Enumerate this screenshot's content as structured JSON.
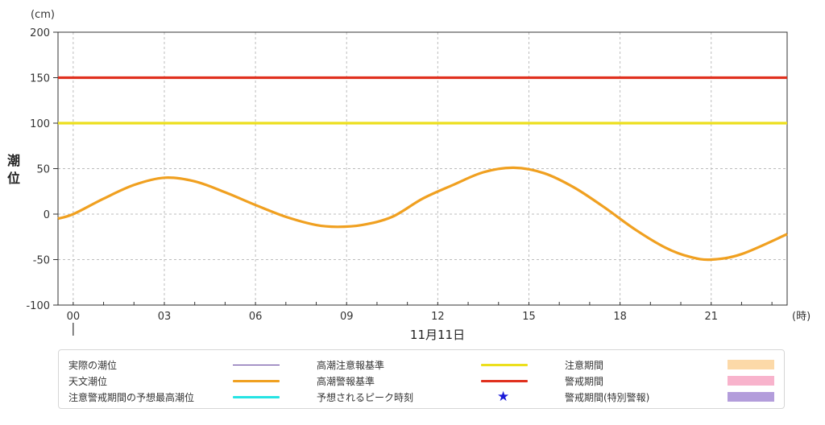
{
  "chart_data": {
    "type": "line",
    "y_unit": "(cm)",
    "x_unit": "(時)",
    "ylabel": "潮位",
    "date_label": "11月11日",
    "ylim": [
      -100,
      200
    ],
    "yticks": [
      -100,
      -50,
      0,
      50,
      100,
      150,
      200
    ],
    "x_range_hours": [
      -0.5,
      23.5
    ],
    "xticks": [
      {
        "hour": 0,
        "label": "00"
      },
      {
        "hour": 3,
        "label": "03"
      },
      {
        "hour": 6,
        "label": "06"
      },
      {
        "hour": 9,
        "label": "09"
      },
      {
        "hour": 12,
        "label": "12"
      },
      {
        "hour": 15,
        "label": "15"
      },
      {
        "hour": 18,
        "label": "18"
      },
      {
        "hour": 21,
        "label": "21"
      }
    ],
    "grid": true,
    "series": [
      {
        "name": "天文潮位",
        "color": "#f0a020",
        "points": [
          {
            "hour": -0.5,
            "value": -5
          },
          {
            "hour": 0,
            "value": 0
          },
          {
            "hour": 1,
            "value": 17
          },
          {
            "hour": 2,
            "value": 32
          },
          {
            "hour": 3,
            "value": 40
          },
          {
            "hour": 4,
            "value": 36
          },
          {
            "hour": 5,
            "value": 24
          },
          {
            "hour": 6,
            "value": 10
          },
          {
            "hour": 7,
            "value": -3
          },
          {
            "hour": 8,
            "value": -12
          },
          {
            "hour": 8.7,
            "value": -14
          },
          {
            "hour": 9.5,
            "value": -12
          },
          {
            "hour": 10.5,
            "value": -3
          },
          {
            "hour": 11.5,
            "value": 17
          },
          {
            "hour": 12.5,
            "value": 32
          },
          {
            "hour": 13.5,
            "value": 46
          },
          {
            "hour": 14.5,
            "value": 51
          },
          {
            "hour": 15.5,
            "value": 45
          },
          {
            "hour": 16.5,
            "value": 29
          },
          {
            "hour": 17.5,
            "value": 7
          },
          {
            "hour": 18.5,
            "value": -17
          },
          {
            "hour": 19.5,
            "value": -37
          },
          {
            "hour": 20.3,
            "value": -47
          },
          {
            "hour": 21,
            "value": -50
          },
          {
            "hour": 22,
            "value": -44
          },
          {
            "hour": 23.5,
            "value": -22
          }
        ]
      },
      {
        "name": "高潮注意報基準",
        "color": "#ecdf1c",
        "constant": 100
      },
      {
        "name": "高潮警報基準",
        "color": "#e0301e",
        "constant": 150
      }
    ]
  },
  "legend": {
    "items": [
      {
        "label": "実際の潮位",
        "swatch": "thin-line",
        "color": "#5b3a99"
      },
      {
        "label": "高潮注意報基準",
        "swatch": "line",
        "color": "#ecdf1c"
      },
      {
        "label": "注意期間",
        "swatch": "box",
        "color": "#fcd9a8"
      },
      {
        "label": "天文潮位",
        "swatch": "line",
        "color": "#f0a020"
      },
      {
        "label": "高潮警報基準",
        "swatch": "line",
        "color": "#e0301e"
      },
      {
        "label": "警戒期間",
        "swatch": "box",
        "color": "#f8b3cc"
      },
      {
        "label": "注意警戒期間の予想最高潮位",
        "swatch": "line",
        "color": "#26e3e3"
      },
      {
        "label": "予想されるピーク時刻",
        "swatch": "star",
        "color": "#1a1ad8",
        "icon": "star-icon"
      },
      {
        "label": "警戒期間(特別警報)",
        "swatch": "box",
        "color": "#b39ddb"
      }
    ]
  }
}
